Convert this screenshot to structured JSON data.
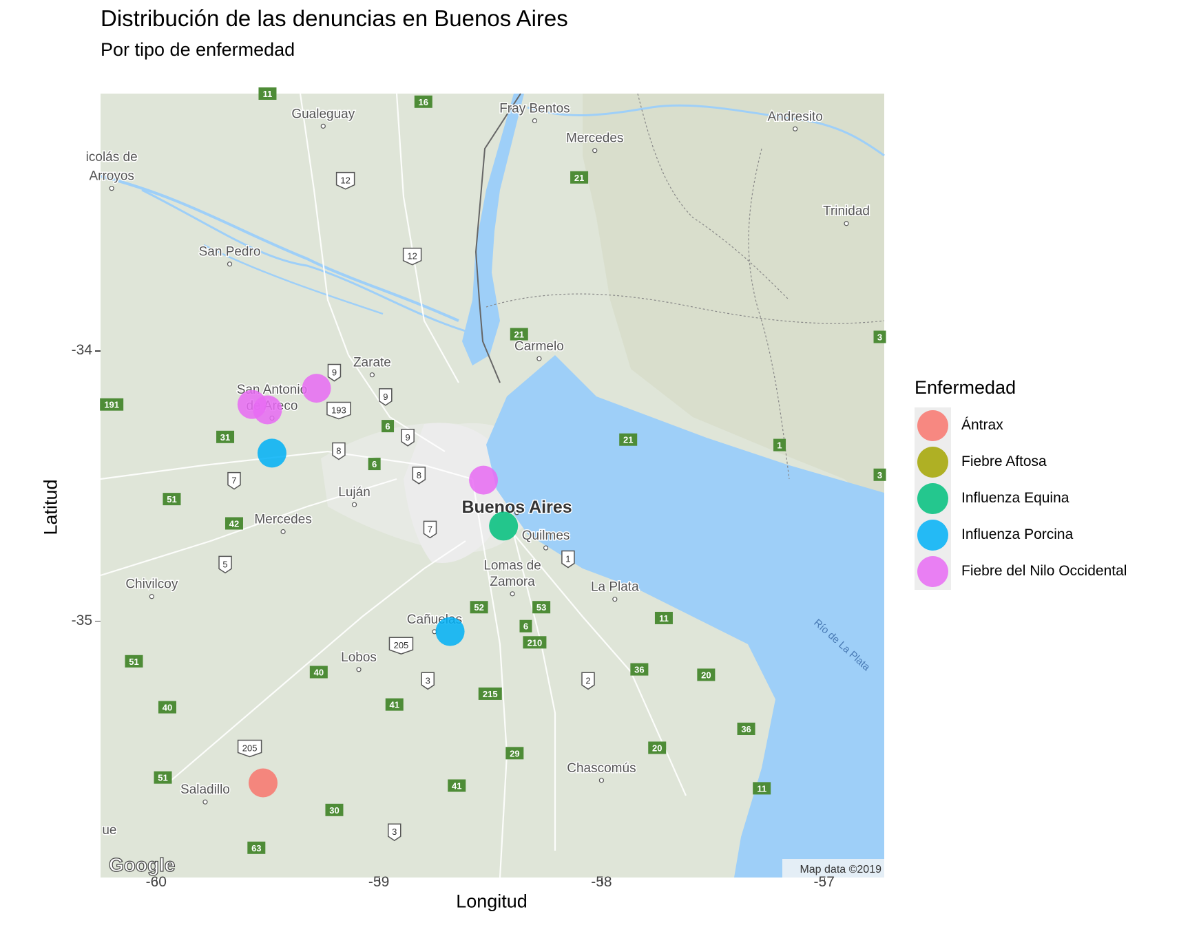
{
  "title": "Distribución de las denuncias en Buenos Aires",
  "subtitle": "Por tipo de enfermedad",
  "xlabel": "Longitud",
  "ylabel": "Latitud",
  "x_ticks": [
    "-60",
    "-59",
    "-58",
    "-57"
  ],
  "y_ticks": [
    "-34",
    "-35"
  ],
  "attribution": "Map data ©2019",
  "logo": "Google",
  "colors": {
    "land": "#dfe5d8",
    "land_hill": "#d6dcc8",
    "water": "#9ecff8",
    "urban": "#ececec",
    "road": "#ffffff",
    "route_green": "#4e8c37",
    "border": "#666666"
  },
  "places": [
    {
      "name": "Gualeguay",
      "lon": -59.25,
      "lat": -33.14
    },
    {
      "name": "Fray Bentos",
      "lon": -58.3,
      "lat": -33.12
    },
    {
      "name": "Andresito",
      "lon": -57.13,
      "lat": -33.15
    },
    {
      "name": "icolás de",
      "lon": -60.2,
      "lat": -33.3
    },
    {
      "name": "Arroyos",
      "lon": -60.2,
      "lat": -33.37
    },
    {
      "name": "Mercedes",
      "lon": -58.03,
      "lat": -33.23
    },
    {
      "name": "Trinidad",
      "lon": -56.9,
      "lat": -33.5
    },
    {
      "name": "San Pedro",
      "lon": -59.67,
      "lat": -33.65
    },
    {
      "name": "Zarate",
      "lon": -59.03,
      "lat": -34.06
    },
    {
      "name": "Carmelo",
      "lon": -58.28,
      "lat": -34.0
    },
    {
      "name": "San Antonio",
      "lon": -59.48,
      "lat": -34.16
    },
    {
      "name": "de Areco",
      "lon": -59.48,
      "lat": -34.22
    },
    {
      "name": "Luján",
      "lon": -59.11,
      "lat": -34.54
    },
    {
      "name": "Buenos Aires",
      "lon": -58.38,
      "lat": -34.6
    },
    {
      "name": "Mercedes",
      "lon": -59.43,
      "lat": -34.64
    },
    {
      "name": "Quilmes",
      "lon": -58.25,
      "lat": -34.7
    },
    {
      "name": "Lomas de",
      "lon": -58.4,
      "lat": -34.81
    },
    {
      "name": "Zamora",
      "lon": -58.4,
      "lat": -34.87
    },
    {
      "name": "La Plata",
      "lon": -57.94,
      "lat": -34.89
    },
    {
      "name": "Chivilcoy",
      "lon": -60.02,
      "lat": -34.88
    },
    {
      "name": "Cañuelas",
      "lon": -58.75,
      "lat": -35.01
    },
    {
      "name": "Lobos",
      "lon": -59.09,
      "lat": -35.15
    },
    {
      "name": "Chascomús",
      "lon": -58.0,
      "lat": -35.56
    },
    {
      "name": "Saladillo",
      "lon": -59.78,
      "lat": -35.64
    },
    {
      "name": "ue",
      "lon": -60.21,
      "lat": -35.79
    }
  ],
  "water_label": "Río de La Plata",
  "routes": [
    {
      "label": "11",
      "lon": -59.5,
      "lat": -33.05,
      "style": "green"
    },
    {
      "label": "16",
      "lon": -58.8,
      "lat": -33.08,
      "style": "green"
    },
    {
      "label": "12",
      "lon": -59.15,
      "lat": -33.37,
      "style": "shield"
    },
    {
      "label": "21",
      "lon": -58.1,
      "lat": -33.36,
      "style": "green"
    },
    {
      "label": "12",
      "lon": -58.85,
      "lat": -33.65,
      "style": "shield"
    },
    {
      "label": "21",
      "lon": -58.37,
      "lat": -33.94,
      "style": "green"
    },
    {
      "label": "3",
      "lon": -56.75,
      "lat": -33.95,
      "style": "green"
    },
    {
      "label": "9",
      "lon": -59.2,
      "lat": -34.08,
      "style": "shield"
    },
    {
      "label": "191",
      "lon": -60.2,
      "lat": -34.2,
      "style": "green"
    },
    {
      "label": "9",
      "lon": -58.97,
      "lat": -34.17,
      "style": "shield"
    },
    {
      "label": "193",
      "lon": -59.18,
      "lat": -34.22,
      "style": "shield"
    },
    {
      "label": "6",
      "lon": -58.96,
      "lat": -34.28,
      "style": "green"
    },
    {
      "label": "31",
      "lon": -59.69,
      "lat": -34.32,
      "style": "green"
    },
    {
      "label": "9",
      "lon": -58.87,
      "lat": -34.32,
      "style": "shield"
    },
    {
      "label": "21",
      "lon": -57.88,
      "lat": -34.33,
      "style": "green"
    },
    {
      "label": "1",
      "lon": -57.2,
      "lat": -34.35,
      "style": "green"
    },
    {
      "label": "8",
      "lon": -59.18,
      "lat": -34.37,
      "style": "shield"
    },
    {
      "label": "6",
      "lon": -59.02,
      "lat": -34.42,
      "style": "green"
    },
    {
      "label": "8",
      "lon": -58.82,
      "lat": -34.46,
      "style": "shield"
    },
    {
      "label": "3",
      "lon": -56.75,
      "lat": -34.46,
      "style": "green"
    },
    {
      "label": "7",
      "lon": -59.65,
      "lat": -34.48,
      "style": "shield"
    },
    {
      "label": "51",
      "lon": -59.93,
      "lat": -34.55,
      "style": "green"
    },
    {
      "label": "42",
      "lon": -59.65,
      "lat": -34.64,
      "style": "green"
    },
    {
      "label": "7",
      "lon": -58.77,
      "lat": -34.66,
      "style": "shield"
    },
    {
      "label": "1",
      "lon": -58.15,
      "lat": -34.77,
      "style": "shield"
    },
    {
      "label": "5",
      "lon": -59.69,
      "lat": -34.79,
      "style": "shield"
    },
    {
      "label": "52",
      "lon": -58.55,
      "lat": -34.95,
      "style": "green"
    },
    {
      "label": "53",
      "lon": -58.27,
      "lat": -34.95,
      "style": "green"
    },
    {
      "label": "11",
      "lon": -57.72,
      "lat": -34.99,
      "style": "green"
    },
    {
      "label": "6",
      "lon": -58.34,
      "lat": -35.02,
      "style": "green"
    },
    {
      "label": "205",
      "lon": -58.9,
      "lat": -35.09,
      "style": "shield"
    },
    {
      "label": "210",
      "lon": -58.3,
      "lat": -35.08,
      "style": "green"
    },
    {
      "label": "51",
      "lon": -60.1,
      "lat": -35.15,
      "style": "green"
    },
    {
      "label": "36",
      "lon": -57.83,
      "lat": -35.18,
      "style": "green"
    },
    {
      "label": "20",
      "lon": -57.53,
      "lat": -35.2,
      "style": "green"
    },
    {
      "label": "40",
      "lon": -59.27,
      "lat": -35.19,
      "style": "green"
    },
    {
      "label": "3",
      "lon": -58.78,
      "lat": -35.22,
      "style": "shield"
    },
    {
      "label": "2",
      "lon": -58.06,
      "lat": -35.22,
      "style": "shield"
    },
    {
      "label": "215",
      "lon": -58.5,
      "lat": -35.27,
      "style": "green"
    },
    {
      "label": "41",
      "lon": -58.93,
      "lat": -35.31,
      "style": "green"
    },
    {
      "label": "40",
      "lon": -59.95,
      "lat": -35.32,
      "style": "green"
    },
    {
      "label": "36",
      "lon": -57.35,
      "lat": -35.4,
      "style": "green"
    },
    {
      "label": "20",
      "lon": -57.75,
      "lat": -35.47,
      "style": "green"
    },
    {
      "label": "205",
      "lon": -59.58,
      "lat": -35.47,
      "style": "shield"
    },
    {
      "label": "29",
      "lon": -58.39,
      "lat": -35.49,
      "style": "green"
    },
    {
      "label": "51",
      "lon": -59.97,
      "lat": -35.58,
      "style": "green"
    },
    {
      "label": "41",
      "lon": -58.65,
      "lat": -35.61,
      "style": "green"
    },
    {
      "label": "11",
      "lon": -57.28,
      "lat": -35.62,
      "style": "green"
    },
    {
      "label": "30",
      "lon": -59.2,
      "lat": -35.7,
      "style": "green"
    },
    {
      "label": "3",
      "lon": -58.93,
      "lat": -35.78,
      "style": "shield"
    },
    {
      "label": "63",
      "lon": -59.55,
      "lat": -35.84,
      "style": "green"
    }
  ],
  "legend": {
    "title": "Enfermedad",
    "items": [
      {
        "label": "Ántrax",
        "color": "#f8766d"
      },
      {
        "label": "Fiebre Aftosa",
        "color": "#a3a500"
      },
      {
        "label": "Influenza Equina",
        "color": "#00bf7d"
      },
      {
        "label": "Influenza Porcina",
        "color": "#00b0f6"
      },
      {
        "label": "Fiebre del Nilo Occidental",
        "color": "#e76bf3"
      }
    ]
  },
  "chart_data": {
    "type": "scatter",
    "title": "Distribución de las denuncias en Buenos Aires",
    "subtitle": "Por tipo de enfermedad",
    "xlabel": "Longitud",
    "ylabel": "Latitud",
    "xlim": [
      -60.25,
      -56.73
    ],
    "ylim": [
      -35.95,
      -33.05
    ],
    "grid": false,
    "legend_position": "right",
    "series": [
      {
        "name": "Ántrax",
        "color": "#f8766d",
        "points": [
          {
            "lon": -59.52,
            "lat": -35.6
          }
        ]
      },
      {
        "name": "Fiebre Aftosa",
        "color": "#a3a500",
        "points": []
      },
      {
        "name": "Influenza Equina",
        "color": "#00bf7d",
        "points": [
          {
            "lon": -58.44,
            "lat": -34.65
          }
        ]
      },
      {
        "name": "Influenza Porcina",
        "color": "#00b0f6",
        "points": [
          {
            "lon": -59.48,
            "lat": -34.38
          },
          {
            "lon": -58.68,
            "lat": -35.04
          }
        ]
      },
      {
        "name": "Fiebre del Nilo Occidental",
        "color": "#e76bf3",
        "points": [
          {
            "lon": -59.57,
            "lat": -34.2
          },
          {
            "lon": -59.5,
            "lat": -34.22
          },
          {
            "lon": -59.28,
            "lat": -34.14
          },
          {
            "lon": -58.53,
            "lat": -34.48
          }
        ]
      }
    ]
  }
}
